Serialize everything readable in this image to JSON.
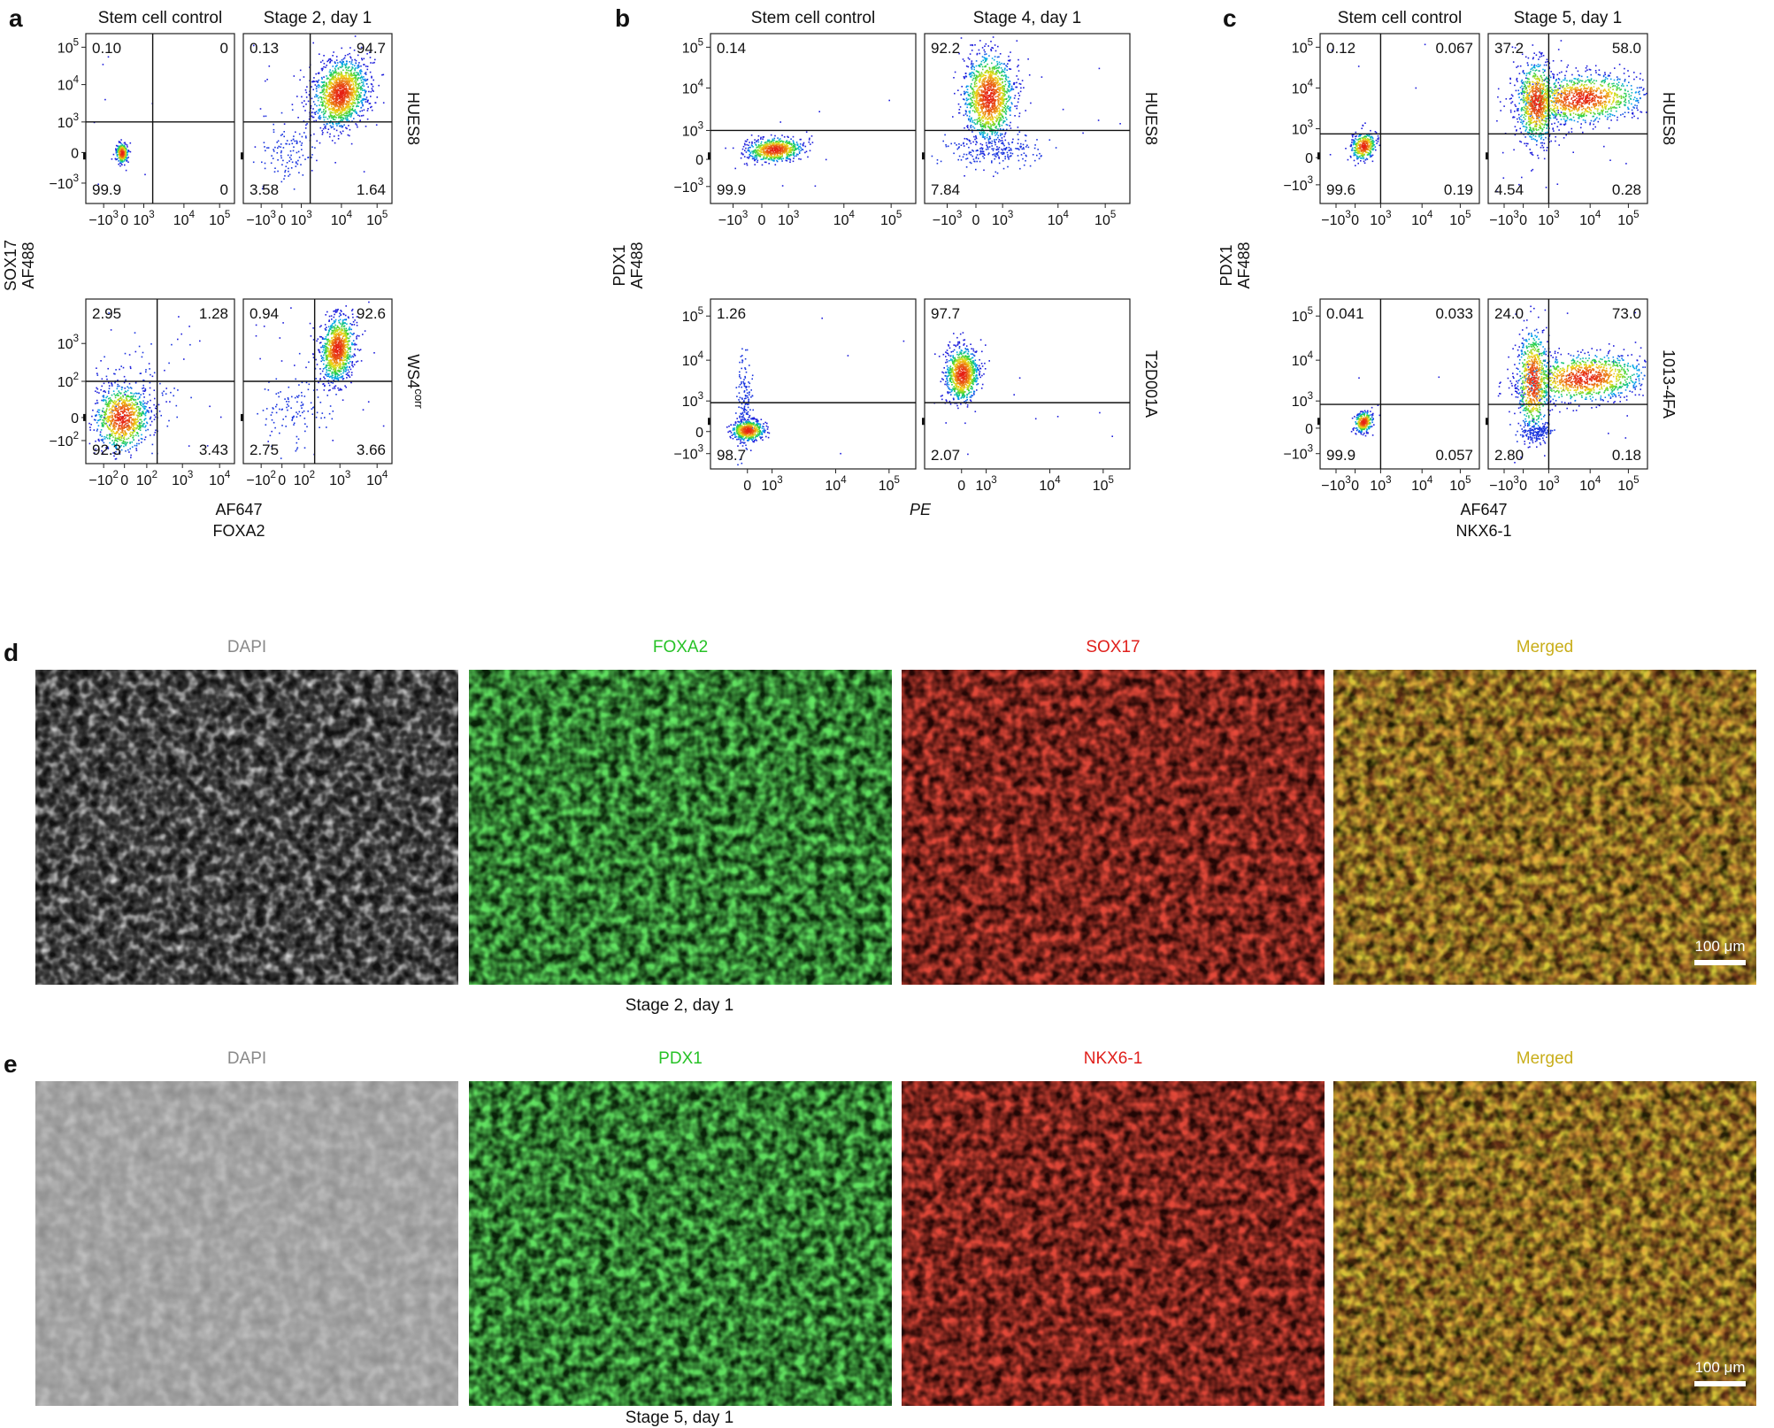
{
  "panel_labels": {
    "a": "a",
    "b": "b",
    "c": "c",
    "d": "d",
    "e": "e"
  },
  "flow_panels": [
    {
      "id": "a",
      "col_titles": [
        "Stem cell control",
        "Stage 2, day 1"
      ],
      "row_labels": [
        "HUES8",
        "WS4corr"
      ],
      "row_label_parts": [
        {
          "base": "HUES8",
          "sup": ""
        },
        {
          "base": "WS4",
          "sup": "corr"
        }
      ],
      "ylabel_lines": [
        "SOX17",
        "AF488"
      ],
      "xlabel_lines": [
        "AF647",
        "FOXA2"
      ],
      "rows": [
        {
          "yticks": [
            {
              "label": "10",
              "exp": "5",
              "v": 0.08
            },
            {
              "label": "10",
              "exp": "4",
              "v": 0.3
            },
            {
              "label": "10",
              "exp": "3",
              "v": 0.52
            },
            {
              "label": "0",
              "exp": "",
              "v": 0.7
            },
            {
              "label": "−10",
              "exp": "3",
              "v": 0.88
            }
          ],
          "xticks": [
            {
              "label": "−10",
              "exp": "3",
              "v": 0.12
            },
            {
              "label": "0",
              "exp": "",
              "v": 0.26
            },
            {
              "label": "10",
              "exp": "3",
              "v": 0.39
            },
            {
              "label": "10",
              "exp": "4",
              "v": 0.66
            },
            {
              "label": "10",
              "exp": "5",
              "v": 0.9
            }
          ],
          "plots": [
            {
              "q": [
                "0.10",
                "0",
                "99.9",
                "0"
              ],
              "qx": 0.45,
              "qy": 0.52,
              "clusters": [
                {
                  "cx": 0.24,
                  "cy": 0.7,
                  "sx": 0.02,
                  "sy": 0.03,
                  "n": 260,
                  "dense": true
                }
              ],
              "scatter": 8
            },
            {
              "q": [
                "0.13",
                "94.7",
                "3.58",
                "1.64"
              ],
              "qx": 0.45,
              "qy": 0.52,
              "clusters": [
                {
                  "cx": 0.65,
                  "cy": 0.35,
                  "sx": 0.1,
                  "sy": 0.1,
                  "rot": -0.6,
                  "n": 1400,
                  "dense": true
                },
                {
                  "cx": 0.3,
                  "cy": 0.7,
                  "sx": 0.09,
                  "sy": 0.1,
                  "n": 110,
                  "dense": false
                }
              ],
              "scatter": 30
            }
          ]
        },
        {
          "yticks": [
            {
              "label": "10",
              "exp": "3",
              "v": 0.27
            },
            {
              "label": "10",
              "exp": "2",
              "v": 0.5
            },
            {
              "label": "0",
              "exp": "",
              "v": 0.72
            },
            {
              "label": "−10",
              "exp": "2",
              "v": 0.86
            }
          ],
          "xticks": [
            {
              "label": "−10",
              "exp": "2",
              "v": 0.12
            },
            {
              "label": "0",
              "exp": "",
              "v": 0.26
            },
            {
              "label": "10",
              "exp": "2",
              "v": 0.41
            },
            {
              "label": "10",
              "exp": "3",
              "v": 0.65
            },
            {
              "label": "10",
              "exp": "4",
              "v": 0.9
            }
          ],
          "plots": [
            {
              "q": [
                "2.95",
                "1.28",
                "92.3",
                "3.43"
              ],
              "qx": 0.48,
              "qy": 0.5,
              "clusters": [
                {
                  "cx": 0.24,
                  "cy": 0.72,
                  "sx": 0.09,
                  "sy": 0.1,
                  "n": 900,
                  "dense": true
                },
                {
                  "cx": 0.35,
                  "cy": 0.55,
                  "sx": 0.15,
                  "sy": 0.2,
                  "n": 90,
                  "dense": false
                }
              ],
              "scatter": 30
            },
            {
              "q": [
                "0.94",
                "92.6",
                "2.75",
                "3.66"
              ],
              "qx": 0.48,
              "qy": 0.5,
              "clusters": [
                {
                  "cx": 0.63,
                  "cy": 0.3,
                  "sx": 0.06,
                  "sy": 0.1,
                  "rot": -0.5,
                  "n": 1000,
                  "dense": true
                },
                {
                  "cx": 0.35,
                  "cy": 0.68,
                  "sx": 0.12,
                  "sy": 0.12,
                  "n": 120,
                  "dense": false
                }
              ],
              "scatter": 25
            }
          ]
        }
      ]
    },
    {
      "id": "b",
      "col_titles": [
        "Stem cell control",
        "Stage 4, day 1"
      ],
      "row_labels": [
        "HUES8",
        "T2D001A"
      ],
      "row_label_parts": [
        {
          "base": "HUES8",
          "sup": ""
        },
        {
          "base": "T2D001A",
          "sup": ""
        }
      ],
      "ylabel_lines": [
        "PDX1",
        "AF488"
      ],
      "xlabel_lines": [
        "PE"
      ],
      "rows": [
        {
          "yticks": [
            {
              "label": "10",
              "exp": "5",
              "v": 0.08
            },
            {
              "label": "10",
              "exp": "4",
              "v": 0.32
            },
            {
              "label": "10",
              "exp": "3",
              "v": 0.57
            },
            {
              "label": "0",
              "exp": "",
              "v": 0.74
            },
            {
              "label": "−10",
              "exp": "3",
              "v": 0.9
            }
          ],
          "xticks": [
            {
              "label": "−10",
              "exp": "3",
              "v": 0.11
            },
            {
              "label": "0",
              "exp": "",
              "v": 0.25
            },
            {
              "label": "10",
              "exp": "3",
              "v": 0.38
            },
            {
              "label": "10",
              "exp": "4",
              "v": 0.65
            },
            {
              "label": "10",
              "exp": "5",
              "v": 0.88
            }
          ],
          "plots": [
            {
              "q": [
                "0.14",
                "",
                "99.9",
                ""
              ],
              "qx": -1,
              "qy": 0.57,
              "clusters": [
                {
                  "cx": 0.31,
                  "cy": 0.68,
                  "sx": 0.07,
                  "sy": 0.035,
                  "rot": -0.35,
                  "n": 700,
                  "dense": true
                }
              ],
              "scatter": 6
            },
            {
              "q": [
                "92.2",
                "",
                "7.84",
                ""
              ],
              "qx": -1,
              "qy": 0.57,
              "clusters": [
                {
                  "cx": 0.31,
                  "cy": 0.37,
                  "sx": 0.06,
                  "sy": 0.13,
                  "n": 1300,
                  "dense": true
                },
                {
                  "cx": 0.33,
                  "cy": 0.68,
                  "sx": 0.12,
                  "sy": 0.05,
                  "n": 200,
                  "dense": false
                }
              ],
              "scatter": 10
            }
          ]
        },
        {
          "yticks": [
            {
              "label": "10",
              "exp": "5",
              "v": 0.1
            },
            {
              "label": "10",
              "exp": "4",
              "v": 0.36
            },
            {
              "label": "10",
              "exp": "3",
              "v": 0.6
            },
            {
              "label": "0",
              "exp": "",
              "v": 0.78
            },
            {
              "label": "−10",
              "exp": "3",
              "v": 0.91
            }
          ],
          "xticks": [
            {
              "label": "0",
              "exp": "",
              "v": 0.18
            },
            {
              "label": "10",
              "exp": "3",
              "v": 0.3
            },
            {
              "label": "10",
              "exp": "4",
              "v": 0.61
            },
            {
              "label": "10",
              "exp": "5",
              "v": 0.87
            }
          ],
          "plots": [
            {
              "q": [
                "1.26",
                "",
                "98.7",
                ""
              ],
              "qx": -1,
              "qy": 0.61,
              "clusters": [
                {
                  "cx": 0.18,
                  "cy": 0.77,
                  "sx": 0.04,
                  "sy": 0.03,
                  "n": 500,
                  "dense": true
                },
                {
                  "cx": 0.16,
                  "cy": 0.6,
                  "sx": 0.02,
                  "sy": 0.13,
                  "n": 160,
                  "dense": false
                }
              ],
              "scatter": 5
            },
            {
              "q": [
                "97.7",
                "",
                "2.07",
                ""
              ],
              "qx": -1,
              "qy": 0.61,
              "clusters": [
                {
                  "cx": 0.18,
                  "cy": 0.44,
                  "sx": 0.04,
                  "sy": 0.08,
                  "n": 900,
                  "dense": true
                }
              ],
              "scatter": 8
            }
          ]
        }
      ]
    },
    {
      "id": "c",
      "col_titles": [
        "Stem cell control",
        "Stage 5, day 1"
      ],
      "row_labels": [
        "HUES8",
        "1013-4FA"
      ],
      "row_label_parts": [
        {
          "base": "HUES8",
          "sup": ""
        },
        {
          "base": "1013-4FA",
          "sup": ""
        }
      ],
      "ylabel_lines": [
        "PDX1",
        "AF488"
      ],
      "xlabel_lines": [
        "AF647",
        "NKX6-1"
      ],
      "rows": [
        {
          "yticks": [
            {
              "label": "10",
              "exp": "5",
              "v": 0.08
            },
            {
              "label": "10",
              "exp": "4",
              "v": 0.32
            },
            {
              "label": "10",
              "exp": "3",
              "v": 0.56
            },
            {
              "label": "0",
              "exp": "",
              "v": 0.73
            },
            {
              "label": "−10",
              "exp": "3",
              "v": 0.89
            }
          ],
          "xticks": [
            {
              "label": "−10",
              "exp": "3",
              "v": 0.1
            },
            {
              "label": "0",
              "exp": "",
              "v": 0.22
            },
            {
              "label": "10",
              "exp": "3",
              "v": 0.38
            },
            {
              "label": "10",
              "exp": "4",
              "v": 0.64
            },
            {
              "label": "10",
              "exp": "5",
              "v": 0.88
            }
          ],
          "plots": [
            {
              "q": [
                "0.12",
                "0.067",
                "99.6",
                "0.19"
              ],
              "qx": 0.38,
              "qy": 0.59,
              "clusters": [
                {
                  "cx": 0.27,
                  "cy": 0.66,
                  "sx": 0.04,
                  "sy": 0.04,
                  "rot": -0.4,
                  "n": 350,
                  "dense": true
                }
              ],
              "scatter": 6
            },
            {
              "q": [
                "37.2",
                "58.0",
                "4.54",
                "0.28"
              ],
              "qx": 0.38,
              "qy": 0.59,
              "clusters": [
                {
                  "cx": 0.3,
                  "cy": 0.4,
                  "sx": 0.06,
                  "sy": 0.12,
                  "n": 800,
                  "dense": true
                },
                {
                  "cx": 0.58,
                  "cy": 0.38,
                  "sx": 0.2,
                  "sy": 0.07,
                  "rot": -0.35,
                  "n": 1100,
                  "dense": true
                }
              ],
              "scatter": 30
            }
          ]
        },
        {
          "yticks": [
            {
              "label": "10",
              "exp": "5",
              "v": 0.1
            },
            {
              "label": "10",
              "exp": "4",
              "v": 0.36
            },
            {
              "label": "10",
              "exp": "3",
              "v": 0.6
            },
            {
              "label": "0",
              "exp": "",
              "v": 0.76
            },
            {
              "label": "−10",
              "exp": "3",
              "v": 0.91
            }
          ],
          "xticks": [
            {
              "label": "−10",
              "exp": "3",
              "v": 0.1
            },
            {
              "label": "0",
              "exp": "",
              "v": 0.22
            },
            {
              "label": "10",
              "exp": "3",
              "v": 0.38
            },
            {
              "label": "10",
              "exp": "4",
              "v": 0.64
            },
            {
              "label": "10",
              "exp": "5",
              "v": 0.88
            }
          ],
          "plots": [
            {
              "q": [
                "0.041",
                "0.033",
                "99.9",
                "0.057"
              ],
              "qx": 0.38,
              "qy": 0.62,
              "clusters": [
                {
                  "cx": 0.27,
                  "cy": 0.72,
                  "sx": 0.03,
                  "sy": 0.03,
                  "rot": -0.4,
                  "n": 300,
                  "dense": true
                }
              ],
              "scatter": 4
            },
            {
              "q": [
                "24.0",
                "73.0",
                "2.80",
                "0.18"
              ],
              "qx": 0.38,
              "qy": 0.62,
              "clusters": [
                {
                  "cx": 0.28,
                  "cy": 0.48,
                  "sx": 0.05,
                  "sy": 0.15,
                  "n": 700,
                  "dense": true
                },
                {
                  "cx": 0.6,
                  "cy": 0.46,
                  "sx": 0.2,
                  "sy": 0.07,
                  "rot": -0.4,
                  "n": 1100,
                  "dense": true
                },
                {
                  "cx": 0.3,
                  "cy": 0.78,
                  "sx": 0.05,
                  "sy": 0.03,
                  "n": 150,
                  "dense": false
                }
              ],
              "scatter": 20
            }
          ]
        }
      ]
    }
  ],
  "image_rows": [
    {
      "id": "d",
      "captions": [
        "DAPI",
        "FOXA2",
        "SOX17",
        "Merged"
      ],
      "caption_colors": [
        "#8a8a8a",
        "#27c227",
        "#e0201c",
        "#c9ae1a"
      ],
      "tile_colors": [
        "gray",
        "green",
        "red",
        "merged"
      ],
      "scale_bar": "100 μm",
      "footer": "Stage 2, day 1"
    },
    {
      "id": "e",
      "captions": [
        "DAPI",
        "PDX1",
        "NKX6-1",
        "Merged"
      ],
      "caption_colors": [
        "#8a8a8a",
        "#27c227",
        "#e0201c",
        "#c9ae1a"
      ],
      "tile_colors": [
        "lightgray",
        "green",
        "red",
        "merged"
      ],
      "scale_bar": "100 μm",
      "footer": "Stage 5, day 1"
    }
  ]
}
